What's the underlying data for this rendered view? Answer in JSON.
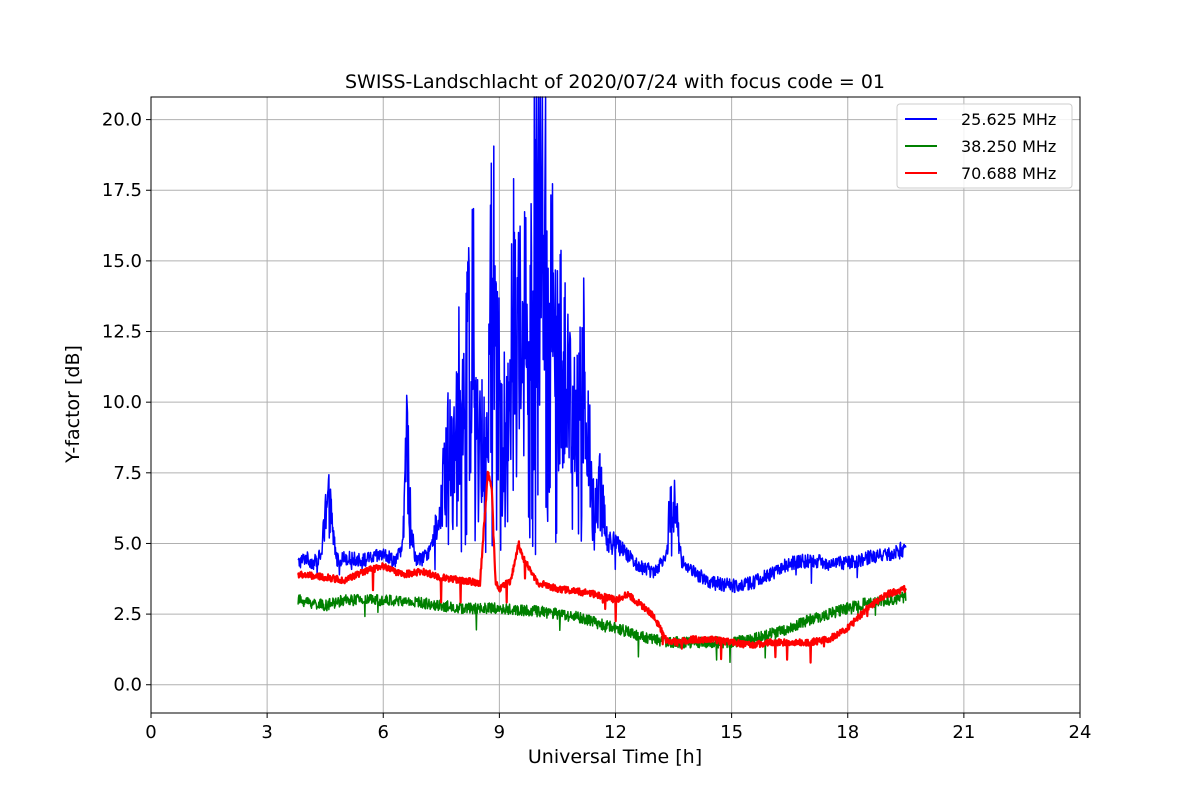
{
  "chart_data": {
    "type": "line",
    "title": "SWISS-Landschlacht of 2020/07/24 with focus code = 01",
    "xlabel": "Universal Time [h]",
    "ylabel": "Y-factor [dB]",
    "xlim": [
      0,
      24
    ],
    "ylim": [
      -1.0,
      20.8
    ],
    "xticks": [
      0,
      3,
      6,
      9,
      12,
      15,
      18,
      21,
      24
    ],
    "yticks": [
      0.0,
      2.5,
      5.0,
      7.5,
      10.0,
      12.5,
      15.0,
      17.5,
      20.0
    ],
    "xtick_labels": [
      "0",
      "3",
      "6",
      "9",
      "12",
      "15",
      "18",
      "21",
      "24"
    ],
    "ytick_labels": [
      "0.0",
      "2.5",
      "5.0",
      "7.5",
      "10.0",
      "12.5",
      "15.0",
      "17.5",
      "20.0"
    ],
    "grid": true,
    "legend_position": "top-right",
    "series": [
      {
        "name": "25.625 MHz",
        "color": "#0000ff",
        "x": [
          3.8,
          4.0,
          4.2,
          4.4,
          4.5,
          4.6,
          4.8,
          5.0,
          5.5,
          6.0,
          6.3,
          6.5,
          6.6,
          6.8,
          7.0,
          7.3,
          7.5,
          7.7,
          7.9,
          8.1,
          8.3,
          8.5,
          8.7,
          8.8,
          8.9,
          9.0,
          9.2,
          9.4,
          9.6,
          9.8,
          10.0,
          10.2,
          10.4,
          10.6,
          10.8,
          11.0,
          11.2,
          11.4,
          11.6,
          11.8,
          12.0,
          12.3,
          12.6,
          13.0,
          13.3,
          13.5,
          13.7,
          14.0,
          14.5,
          15.0,
          15.5,
          16.0,
          16.5,
          17.0,
          17.5,
          18.0,
          18.5,
          19.0,
          19.5
        ],
        "values": [
          4.3,
          4.5,
          4.3,
          4.6,
          5.9,
          6.4,
          4.4,
          4.5,
          4.4,
          4.6,
          4.4,
          4.8,
          8.4,
          4.5,
          4.4,
          5.0,
          6.5,
          8.5,
          10.5,
          9.5,
          14.0,
          8.5,
          9.0,
          17.0,
          12.5,
          10.5,
          8.5,
          14.0,
          11.5,
          15.0,
          18.5,
          15.5,
          14.0,
          12.0,
          10.5,
          9.5,
          11.5,
          6.5,
          7.0,
          5.0,
          5.0,
          4.6,
          4.2,
          4.0,
          4.6,
          7.0,
          4.4,
          4.0,
          3.6,
          3.5,
          3.6,
          3.9,
          4.3,
          4.4,
          4.3,
          4.3,
          4.5,
          4.6,
          4.8
        ]
      },
      {
        "name": "38.250 MHz",
        "color": "#008000",
        "x": [
          3.8,
          4.5,
          5.0,
          6.0,
          7.0,
          8.0,
          9.0,
          10.0,
          11.0,
          11.5,
          12.0,
          12.5,
          13.0,
          13.5,
          14.0,
          14.5,
          15.0,
          15.5,
          16.0,
          16.5,
          17.0,
          17.5,
          18.0,
          18.5,
          19.0,
          19.5
        ],
        "values": [
          3.0,
          2.8,
          3.0,
          3.0,
          2.9,
          2.7,
          2.7,
          2.6,
          2.4,
          2.2,
          2.0,
          1.8,
          1.6,
          1.5,
          1.5,
          1.5,
          1.5,
          1.6,
          1.8,
          2.0,
          2.3,
          2.5,
          2.7,
          2.9,
          3.0,
          3.1
        ]
      },
      {
        "name": "70.688 MHz",
        "color": "#ff0000",
        "x": [
          3.8,
          4.5,
          5.0,
          5.5,
          6.0,
          6.5,
          7.0,
          7.5,
          8.0,
          8.5,
          8.7,
          8.8,
          8.9,
          9.0,
          9.3,
          9.5,
          9.6,
          10.0,
          10.5,
          11.0,
          11.5,
          12.0,
          12.3,
          12.6,
          13.0,
          13.3,
          13.6,
          14.0,
          14.5,
          15.0,
          15.5,
          16.0,
          16.5,
          17.0,
          17.5,
          18.0,
          18.5,
          19.0,
          19.5
        ],
        "values": [
          3.9,
          3.8,
          3.7,
          4.0,
          4.2,
          3.9,
          4.0,
          3.8,
          3.7,
          3.6,
          7.5,
          7.0,
          3.6,
          3.4,
          3.7,
          5.0,
          4.5,
          3.6,
          3.4,
          3.3,
          3.2,
          3.0,
          3.2,
          2.9,
          2.4,
          1.6,
          1.5,
          1.6,
          1.6,
          1.5,
          1.4,
          1.5,
          1.5,
          1.5,
          1.6,
          2.0,
          2.7,
          3.2,
          3.4
        ]
      }
    ]
  }
}
